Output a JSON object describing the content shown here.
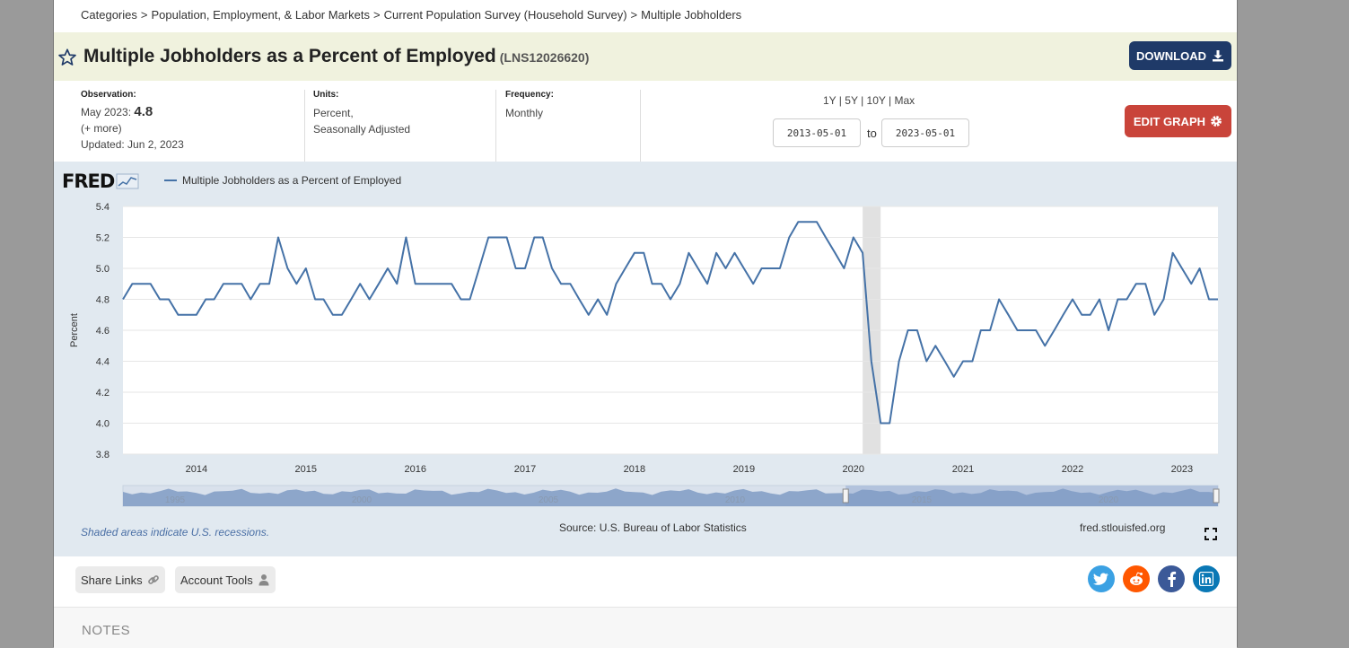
{
  "breadcrumb": [
    "Categories",
    "Population, Employment, & Labor Markets",
    "Current Population Survey (Household Survey)",
    "Multiple Jobholders"
  ],
  "header": {
    "title": "Multiple Jobholders as a Percent of Employed",
    "series_id": "(LNS12026620)",
    "download_label": "DOWNLOAD"
  },
  "meta": {
    "observation_label": "Observation:",
    "observation_date": "May 2023:",
    "observation_value": "4.8",
    "more": "(+ more)",
    "updated": "Updated: Jun 2, 2023",
    "units_label": "Units:",
    "units_line1": "Percent,",
    "units_line2": "Seasonally Adjusted",
    "frequency_label": "Frequency:",
    "frequency": "Monthly"
  },
  "controls": {
    "ranges": [
      "1Y",
      "5Y",
      "10Y",
      "Max"
    ],
    "start_date": "2013-05-01",
    "end_date": "2023-05-01",
    "to_label": "to",
    "edit_label": "EDIT GRAPH"
  },
  "footer": {
    "recession_note": "Shaded areas indicate U.S. recessions.",
    "source": "Source: U.S. Bureau of Labor Statistics",
    "url": "fred.stlouisfed.org"
  },
  "share": {
    "share_links": "Share Links",
    "account_tools": "Account Tools"
  },
  "social": [
    {
      "name": "twitter",
      "color": "#3ba1e3"
    },
    {
      "name": "reddit",
      "color": "#ff5700"
    },
    {
      "name": "facebook",
      "color": "#3b5998"
    },
    {
      "name": "linkedin",
      "color": "#0a78b5"
    }
  ],
  "notes_heading": "NOTES",
  "chart_data": {
    "type": "line",
    "logo": "FRED",
    "title": "",
    "xlabel": "",
    "ylabel": "Percent",
    "ylim": [
      3.8,
      5.4
    ],
    "yticks": [
      "3.8",
      "4.0",
      "4.2",
      "4.4",
      "4.6",
      "4.8",
      "5.0",
      "5.2",
      "5.4"
    ],
    "xlim": [
      "2013-05-01",
      "2023-05-01"
    ],
    "xticks": [
      "2014",
      "2015",
      "2016",
      "2017",
      "2018",
      "2019",
      "2020",
      "2021",
      "2022",
      "2023"
    ],
    "navigator_labels": [
      "1995",
      "2000",
      "2005",
      "2010",
      "2015",
      "2020"
    ],
    "recession": {
      "start": "2020-02-01",
      "end": "2020-04-01"
    },
    "grid": true,
    "color": "#4572a7",
    "series": [
      {
        "name": "Multiple Jobholders as a Percent of Employed",
        "start": "2013-05",
        "values": [
          4.8,
          4.9,
          4.9,
          4.9,
          4.8,
          4.8,
          4.7,
          4.7,
          4.7,
          4.8,
          4.8,
          4.9,
          4.9,
          4.9,
          4.8,
          4.9,
          4.9,
          5.2,
          5.0,
          4.9,
          5.0,
          4.8,
          4.8,
          4.7,
          4.7,
          4.8,
          4.9,
          4.8,
          4.9,
          5.0,
          4.9,
          5.2,
          4.9,
          4.9,
          4.9,
          4.9,
          4.9,
          4.8,
          4.8,
          5.0,
          5.2,
          5.2,
          5.2,
          5.0,
          5.0,
          5.2,
          5.2,
          5.0,
          4.9,
          4.9,
          4.8,
          4.7,
          4.8,
          4.7,
          4.9,
          5.0,
          5.1,
          5.1,
          4.9,
          4.9,
          4.8,
          4.9,
          5.1,
          5.0,
          4.9,
          5.1,
          5.0,
          5.1,
          5.0,
          4.9,
          5.0,
          5.0,
          5.0,
          5.2,
          5.3,
          5.3,
          5.3,
          5.2,
          5.1,
          5.0,
          5.2,
          5.1,
          4.4,
          4.0,
          4.0,
          4.4,
          4.6,
          4.6,
          4.4,
          4.5,
          4.4,
          4.3,
          4.4,
          4.4,
          4.6,
          4.6,
          4.8,
          4.7,
          4.6,
          4.6,
          4.6,
          4.5,
          4.6,
          4.7,
          4.8,
          4.7,
          4.7,
          4.8,
          4.6,
          4.8,
          4.8,
          4.9,
          4.9,
          4.7,
          4.8,
          5.1,
          5.0,
          4.9,
          5.0,
          4.8,
          4.8
        ]
      }
    ]
  }
}
